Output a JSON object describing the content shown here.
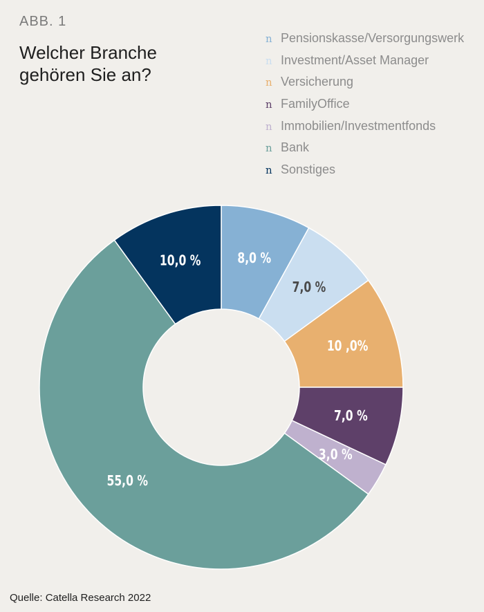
{
  "figure_label": "ABB. 1",
  "source": "Quelle: Catella Research 2022",
  "chart_data": {
    "type": "pie",
    "title": "Welcher Branche gehören Sie an?",
    "unit": "%",
    "legend_position": "top-right",
    "legend_marker": "n",
    "categories": [
      "Pensionskasse/Versorgungswerk",
      "Investment/Asset Manager",
      "Versicherung",
      "FamilyOffice",
      "Immobilien/Investmentfonds",
      "Bank",
      "Sonstiges"
    ],
    "values": [
      8.0,
      7.0,
      10.0,
      7.0,
      3.0,
      55.0,
      10.0
    ],
    "labels": [
      "8,0 %",
      "7,0 %",
      "10 ,0%",
      "7,0 %",
      "3,0 %",
      "55,0 %",
      "10,0 %"
    ],
    "colors": [
      "#86b1d4",
      "#cadef0",
      "#e8b06f",
      "#5e4069",
      "#bfb1ce",
      "#6b9f9b",
      "#04345e"
    ],
    "label_colors": [
      "#ffffff",
      "#4a4a4a",
      "#ffffff",
      "#ffffff",
      "#ffffff",
      "#ffffff",
      "#ffffff"
    ]
  }
}
